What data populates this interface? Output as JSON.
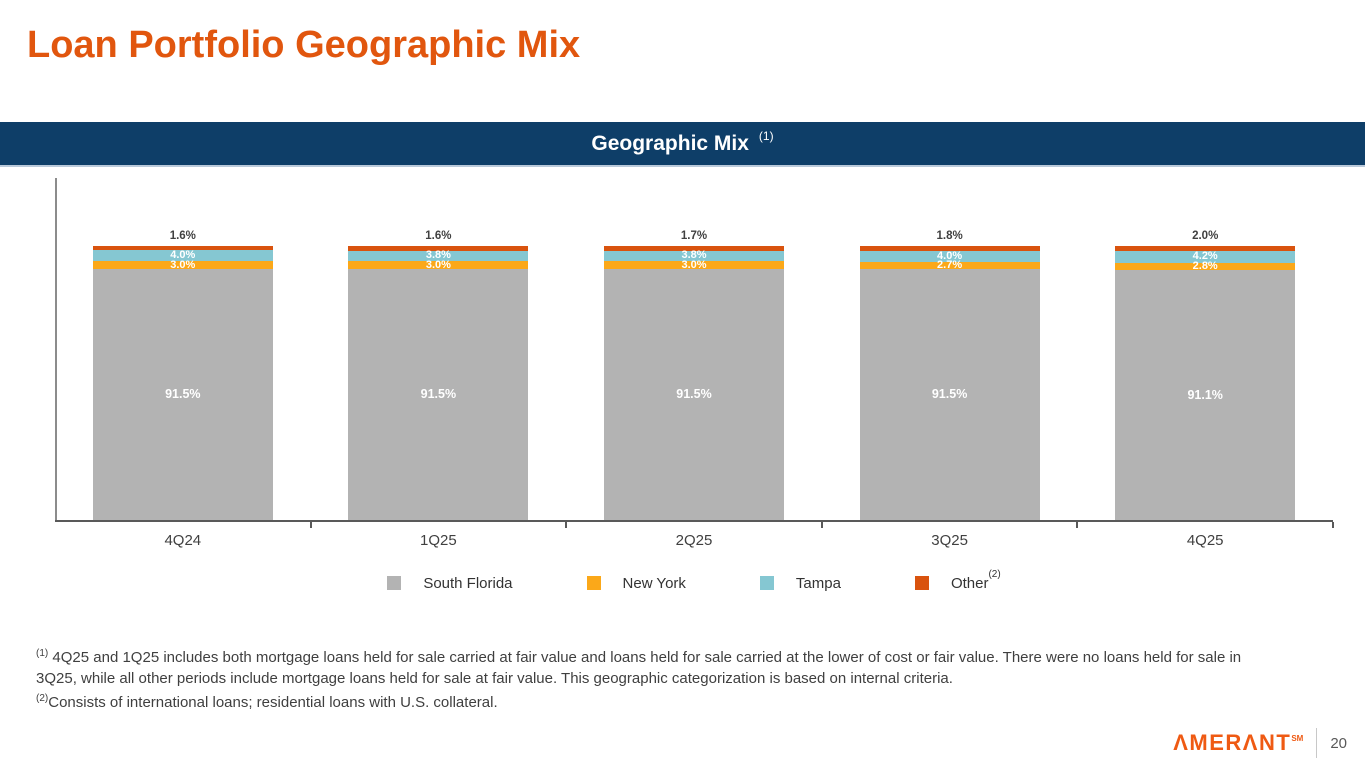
{
  "page": {
    "title": "Loan Portfolio Geographic Mix",
    "banner": {
      "title": "Geographic Mix",
      "footnote_ref": "(1)"
    },
    "footnotes": [
      {
        "ref": "(1)",
        "text": "4Q25 and 1Q25 includes both mortgage loans held for sale carried at fair value and loans held for sale carried at the lower of cost  or fair value. There were no loans held for sale in 3Q25, while all other periods include mortgage loans held for sale at fair value. This geographic categorization is based on internal criteria."
      },
      {
        "ref": "(2)",
        "text": "Consists of international loans; residential loans with U.S. collateral."
      }
    ],
    "footer": {
      "logo_text": "ΛMERΛNT",
      "logo_mark": "SM",
      "page_number": "20"
    }
  },
  "colors": {
    "title_orange": "#E1560E",
    "banner_navy": "#0E3E68",
    "axis_gray": "#595959",
    "label_dark": "#404040",
    "logo_orange": "#EF5A13"
  },
  "chart_data": {
    "type": "bar",
    "stacked": true,
    "title": "Geographic Mix",
    "categories": [
      "4Q24",
      "1Q25",
      "2Q25",
      "3Q25",
      "4Q25"
    ],
    "series": [
      {
        "name": "South Florida",
        "color": "#B3B3B3",
        "values": [
          91.5,
          91.5,
          91.5,
          91.5,
          91.1
        ],
        "label_position": "inside"
      },
      {
        "name": "New York",
        "color": "#FBA819",
        "values": [
          3.0,
          3.0,
          3.0,
          2.7,
          2.8
        ],
        "label_position": "inside"
      },
      {
        "name": "Tampa",
        "color": "#85C7D2",
        "values": [
          3.997,
          3.8,
          3.8,
          4.0,
          4.2
        ],
        "label_position": "inside"
      },
      {
        "name": "Other",
        "color": "#D9530E",
        "values": [
          1.6,
          1.6,
          1.7,
          1.8,
          2.0
        ],
        "label_position": "above",
        "legend_superscript": "(2)"
      }
    ],
    "value_suffix": "%",
    "value_decimals": 1,
    "ylim": [
      0,
      100
    ],
    "gridlines": false,
    "legend_position": "bottom"
  }
}
